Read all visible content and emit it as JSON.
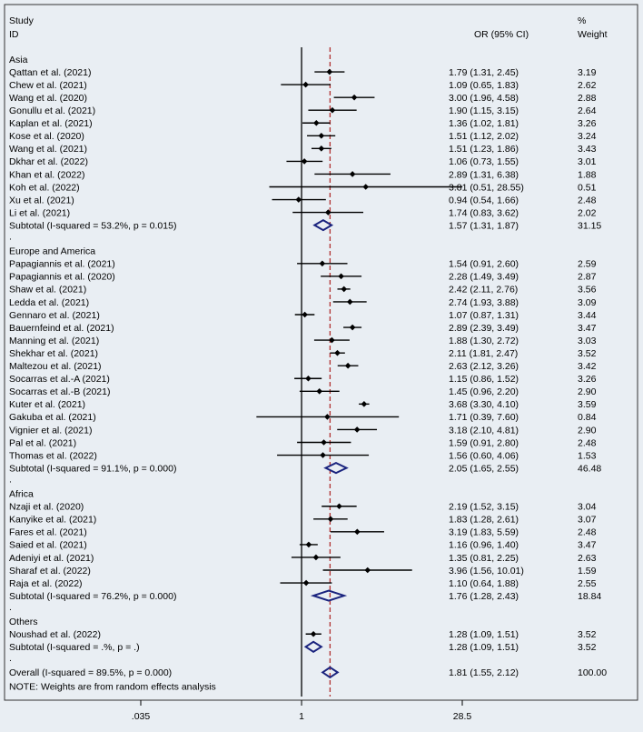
{
  "chart_data": {
    "type": "forest",
    "header": {
      "study_line1": "Study",
      "study_line2": "ID",
      "or_label": "OR (95% CI)",
      "weight_line1": "%",
      "weight_line2": "Weight"
    },
    "axis": {
      "scale": "log",
      "range": [
        0.035,
        28.5
      ],
      "ticks": [
        {
          "value": 0.035,
          "label": ".035"
        },
        {
          "value": 1,
          "label": "1"
        },
        {
          "value": 28.5,
          "label": "28.5"
        }
      ],
      "null_line": 1,
      "overall_line": 1.81
    },
    "groups": [
      {
        "name": "Asia",
        "studies": [
          {
            "label": "Qattan et al. (2021)",
            "or": 1.79,
            "lo": 1.31,
            "hi": 2.45,
            "ci_text": "1.79 (1.31, 2.45)",
            "weight": "3.19"
          },
          {
            "label": "Chew et al. (2021)",
            "or": 1.09,
            "lo": 0.65,
            "hi": 1.83,
            "ci_text": "1.09 (0.65, 1.83)",
            "weight": "2.62"
          },
          {
            "label": "Wang et al. (2020)",
            "or": 3.0,
            "lo": 1.96,
            "hi": 4.58,
            "ci_text": "3.00 (1.96, 4.58)",
            "weight": "2.88"
          },
          {
            "label": "Gonullu et al. (2021)",
            "or": 1.9,
            "lo": 1.15,
            "hi": 3.15,
            "ci_text": "1.90 (1.15, 3.15)",
            "weight": "2.64"
          },
          {
            "label": "Kaplan et al. (2021)",
            "or": 1.36,
            "lo": 1.02,
            "hi": 1.81,
            "ci_text": "1.36 (1.02, 1.81)",
            "weight": "3.26"
          },
          {
            "label": "Kose et al. (2020)",
            "or": 1.51,
            "lo": 1.12,
            "hi": 2.02,
            "ci_text": "1.51 (1.12, 2.02)",
            "weight": "3.24"
          },
          {
            "label": "Wang et al. (2021)",
            "or": 1.51,
            "lo": 1.23,
            "hi": 1.86,
            "ci_text": "1.51 (1.23, 1.86)",
            "weight": "3.43"
          },
          {
            "label": "Dkhar et al. (2022)",
            "or": 1.06,
            "lo": 0.73,
            "hi": 1.55,
            "ci_text": "1.06 (0.73, 1.55)",
            "weight": "3.01"
          },
          {
            "label": "Khan et al. (2022)",
            "or": 2.89,
            "lo": 1.31,
            "hi": 6.38,
            "ci_text": "2.89 (1.31, 6.38)",
            "weight": "1.88"
          },
          {
            "label": "Koh et al. (2022)",
            "or": 3.81,
            "lo": 0.51,
            "hi": 28.55,
            "ci_text": "3.81 (0.51, 28.55)",
            "weight": "0.51"
          },
          {
            "label": "Xu et al. (2021)",
            "or": 0.94,
            "lo": 0.54,
            "hi": 1.66,
            "ci_text": "0.94 (0.54, 1.66)",
            "weight": "2.48"
          },
          {
            "label": "Li et al. (2021)",
            "or": 1.74,
            "lo": 0.83,
            "hi": 3.62,
            "ci_text": "1.74 (0.83, 3.62)",
            "weight": "2.02"
          }
        ],
        "subtotal": {
          "label": "Subtotal  (I-squared = 53.2%, p = 0.015)",
          "or": 1.57,
          "lo": 1.31,
          "hi": 1.87,
          "ci_text": "1.57 (1.31, 1.87)",
          "weight": "31.15"
        }
      },
      {
        "name": "Europe and America",
        "studies": [
          {
            "label": "Papagiannis et al. (2021)",
            "or": 1.54,
            "lo": 0.91,
            "hi": 2.6,
            "ci_text": "1.54 (0.91, 2.60)",
            "weight": "2.59"
          },
          {
            "label": "Papagiannis et al. (2020)",
            "or": 2.28,
            "lo": 1.49,
            "hi": 3.49,
            "ci_text": "2.28 (1.49, 3.49)",
            "weight": "2.87"
          },
          {
            "label": "Shaw et al. (2021)",
            "or": 2.42,
            "lo": 2.11,
            "hi": 2.76,
            "ci_text": "2.42 (2.11, 2.76)",
            "weight": "3.56"
          },
          {
            "label": "Ledda et al. (2021)",
            "or": 2.74,
            "lo": 1.93,
            "hi": 3.88,
            "ci_text": "2.74 (1.93, 3.88)",
            "weight": "3.09"
          },
          {
            "label": "Gennaro et al. (2021)",
            "or": 1.07,
            "lo": 0.87,
            "hi": 1.31,
            "ci_text": "1.07 (0.87, 1.31)",
            "weight": "3.44"
          },
          {
            "label": "Bauernfeind et al. (2021)",
            "or": 2.89,
            "lo": 2.39,
            "hi": 3.49,
            "ci_text": "2.89 (2.39, 3.49)",
            "weight": "3.47"
          },
          {
            "label": "Manning et al. (2021)",
            "or": 1.88,
            "lo": 1.3,
            "hi": 2.72,
            "ci_text": "1.88 (1.30, 2.72)",
            "weight": "3.03"
          },
          {
            "label": "Shekhar et al. (2021)",
            "or": 2.11,
            "lo": 1.81,
            "hi": 2.47,
            "ci_text": "2.11 (1.81, 2.47)",
            "weight": "3.52"
          },
          {
            "label": "Maltezou et al. (2021)",
            "or": 2.63,
            "lo": 2.12,
            "hi": 3.26,
            "ci_text": "2.63 (2.12, 3.26)",
            "weight": "3.42"
          },
          {
            "label": "Socarras et al.-A (2021)",
            "or": 1.15,
            "lo": 0.86,
            "hi": 1.52,
            "ci_text": "1.15 (0.86, 1.52)",
            "weight": "3.26"
          },
          {
            "label": "Socarras et al.-B (2021)",
            "or": 1.45,
            "lo": 0.96,
            "hi": 2.2,
            "ci_text": "1.45 (0.96, 2.20)",
            "weight": "2.90"
          },
          {
            "label": "Kuter et al. (2021)",
            "or": 3.68,
            "lo": 3.3,
            "hi": 4.1,
            "ci_text": "3.68 (3.30, 4.10)",
            "weight": "3.59"
          },
          {
            "label": "Gakuba et al. (2021)",
            "or": 1.71,
            "lo": 0.39,
            "hi": 7.6,
            "ci_text": "1.71 (0.39, 7.60)",
            "weight": "0.84"
          },
          {
            "label": "Vignier et al. (2021)",
            "or": 3.18,
            "lo": 2.1,
            "hi": 4.81,
            "ci_text": "3.18 (2.10, 4.81)",
            "weight": "2.90"
          },
          {
            "label": "Pal et al. (2021)",
            "or": 1.59,
            "lo": 0.91,
            "hi": 2.8,
            "ci_text": "1.59 (0.91, 2.80)",
            "weight": "2.48"
          },
          {
            "label": "Thomas et al. (2022)",
            "or": 1.56,
            "lo": 0.6,
            "hi": 4.06,
            "ci_text": "1.56 (0.60, 4.06)",
            "weight": "1.53"
          }
        ],
        "subtotal": {
          "label": "Subtotal  (I-squared = 91.1%, p = 0.000)",
          "or": 2.05,
          "lo": 1.65,
          "hi": 2.55,
          "ci_text": "2.05 (1.65, 2.55)",
          "weight": "46.48"
        }
      },
      {
        "name": "Africa",
        "studies": [
          {
            "label": "Nzaji et al. (2020)",
            "or": 2.19,
            "lo": 1.52,
            "hi": 3.15,
            "ci_text": "2.19 (1.52, 3.15)",
            "weight": "3.04"
          },
          {
            "label": "Kanyike et al. (2021)",
            "or": 1.83,
            "lo": 1.28,
            "hi": 2.61,
            "ci_text": "1.83 (1.28, 2.61)",
            "weight": "3.07"
          },
          {
            "label": "Fares et al. (2021)",
            "or": 3.19,
            "lo": 1.83,
            "hi": 5.59,
            "ci_text": "3.19 (1.83, 5.59)",
            "weight": "2.48"
          },
          {
            "label": "Saied et al. (2021)",
            "or": 1.16,
            "lo": 0.96,
            "hi": 1.4,
            "ci_text": "1.16 (0.96, 1.40)",
            "weight": "3.47"
          },
          {
            "label": "Adeniyi et al. (2021)",
            "or": 1.35,
            "lo": 0.81,
            "hi": 2.25,
            "ci_text": "1.35 (0.81, 2.25)",
            "weight": "2.63"
          },
          {
            "label": "Sharaf et al. (2022)",
            "or": 3.96,
            "lo": 1.56,
            "hi": 10.01,
            "ci_text": "3.96 (1.56, 10.01)",
            "weight": "1.59"
          },
          {
            "label": "Raja et al. (2022)",
            "or": 1.1,
            "lo": 0.64,
            "hi": 1.88,
            "ci_text": "1.10 (0.64, 1.88)",
            "weight": "2.55"
          }
        ],
        "subtotal": {
          "label": "Subtotal  (I-squared = 76.2%, p = 0.000)",
          "or": 1.76,
          "lo": 1.28,
          "hi": 2.43,
          "ci_text": "1.76 (1.28, 2.43)",
          "weight": "18.84"
        }
      },
      {
        "name": "Others",
        "studies": [
          {
            "label": "Noushad et al. (2022)",
            "or": 1.28,
            "lo": 1.09,
            "hi": 1.51,
            "ci_text": "1.28 (1.09, 1.51)",
            "weight": "3.52"
          }
        ],
        "subtotal": {
          "label": "Subtotal  (I-squared = .%, p = .)",
          "or": 1.28,
          "lo": 1.09,
          "hi": 1.51,
          "ci_text": "1.28 (1.09, 1.51)",
          "weight": "3.52"
        }
      }
    ],
    "overall": {
      "label": "Overall  (I-squared = 89.5%, p = 0.000)",
      "or": 1.81,
      "lo": 1.55,
      "hi": 2.12,
      "ci_text": "1.81 (1.55, 2.12)",
      "weight": "100.00"
    },
    "note": "NOTE: Weights are from random effects analysis",
    "separator_text": "."
  },
  "colors": {
    "background": "#e9eef3",
    "frame": "#333333",
    "diamond": "#1a237e",
    "overall_line": "#b03030",
    "marker": "#000000"
  }
}
